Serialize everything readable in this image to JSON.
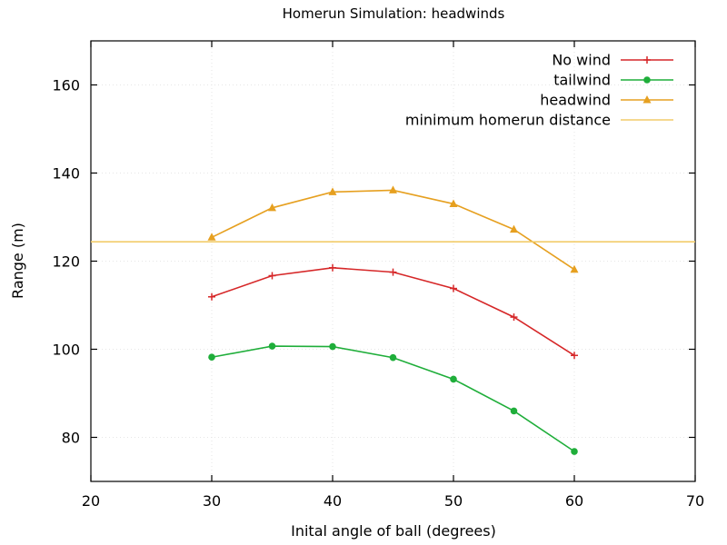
{
  "chart_data": {
    "type": "line",
    "title": "Homerun Simulation: headwinds",
    "xlabel": "Inital angle of ball (degrees)",
    "ylabel": "Range (m)",
    "xlim": [
      20,
      70
    ],
    "ylim": [
      70,
      170
    ],
    "xticks": [
      20,
      30,
      40,
      50,
      60,
      70
    ],
    "yticks": [
      80,
      100,
      120,
      140,
      160
    ],
    "grid": true,
    "legend_position": "top-right",
    "series": [
      {
        "name": "No wind",
        "color": "#d62728",
        "marker": "plus",
        "x": [
          30,
          35,
          40,
          45,
          50,
          55,
          60
        ],
        "y": [
          111.9,
          116.7,
          118.5,
          117.5,
          113.8,
          107.3,
          98.6
        ]
      },
      {
        "name": "tailwind",
        "color": "#1fae3a",
        "marker": "circle",
        "x": [
          30,
          35,
          40,
          45,
          50,
          55,
          60
        ],
        "y": [
          98.2,
          100.7,
          100.6,
          98.1,
          93.2,
          86.0,
          76.8
        ]
      },
      {
        "name": "headwind",
        "color": "#e6a020",
        "marker": "triangle",
        "x": [
          30,
          35,
          40,
          45,
          50,
          55,
          60
        ],
        "y": [
          125.4,
          132.1,
          135.7,
          136.1,
          133.0,
          127.2,
          118.1
        ]
      },
      {
        "name": "minimum homerun distance",
        "color": "#f2cc6a",
        "marker": "none",
        "type": "hline",
        "y": 124.4
      }
    ]
  }
}
